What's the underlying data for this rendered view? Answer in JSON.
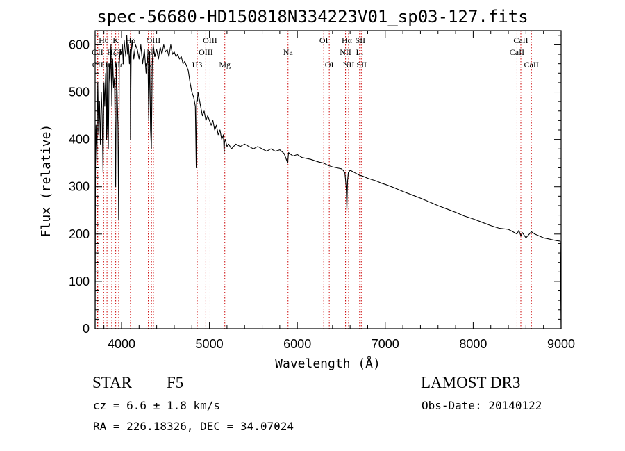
{
  "title": "spec-56680-HD150818N334223V01_sp03-127.fits",
  "footer": {
    "object_class": "STAR",
    "subclass": "F5",
    "survey": "LAMOST DR3",
    "cz": "cz = 6.6 ± 1.8 km/s",
    "obs_date": "Obs-Date: 20140122",
    "radec": "RA = 226.18326, DEC =  34.07024"
  },
  "chart_data": {
    "type": "line",
    "title": "spec-56680-HD150818N334223V01_sp03-127.fits",
    "xlabel": "Wavelength (Å)",
    "ylabel": "Flux (relative)",
    "xlim": [
      3700,
      9000
    ],
    "ylim": [
      0,
      630
    ],
    "x_ticks": [
      4000,
      5000,
      6000,
      7000,
      8000,
      9000
    ],
    "y_ticks": [
      0,
      100,
      200,
      300,
      400,
      500,
      600
    ],
    "line_color": "#000000",
    "marker_color": "#cc0000",
    "spectrum": {
      "x": [
        3700,
        3705,
        3710,
        3720,
        3730,
        3740,
        3750,
        3760,
        3770,
        3780,
        3790,
        3800,
        3810,
        3820,
        3830,
        3835,
        3840,
        3850,
        3860,
        3870,
        3880,
        3890,
        3900,
        3910,
        3920,
        3930,
        3934,
        3940,
        3950,
        3960,
        3968,
        3975,
        3985,
        4000,
        4010,
        4020,
        4030,
        4040,
        4050,
        4060,
        4070,
        4080,
        4090,
        4100,
        4102,
        4110,
        4120,
        4140,
        4160,
        4180,
        4200,
        4220,
        4240,
        4260,
        4280,
        4300,
        4310,
        4320,
        4330,
        4340,
        4350,
        4360,
        4380,
        4400,
        4420,
        4440,
        4460,
        4480,
        4500,
        4520,
        4540,
        4560,
        4580,
        4600,
        4620,
        4640,
        4660,
        4680,
        4700,
        4720,
        4740,
        4760,
        4780,
        4800,
        4820,
        4840,
        4850,
        4855,
        4861,
        4865,
        4870,
        4880,
        4900,
        4920,
        4940,
        4960,
        4980,
        5000,
        5020,
        5040,
        5060,
        5080,
        5100,
        5120,
        5140,
        5160,
        5167,
        5172,
        5180,
        5200,
        5220,
        5250,
        5300,
        5350,
        5400,
        5450,
        5500,
        5550,
        5600,
        5650,
        5700,
        5750,
        5800,
        5850,
        5890,
        5900,
        5950,
        6000,
        6050,
        6100,
        6150,
        6200,
        6250,
        6300,
        6350,
        6400,
        6450,
        6500,
        6520,
        6540,
        6555,
        6563,
        6570,
        6580,
        6600,
        6650,
        6700,
        6750,
        6800,
        6850,
        6900,
        6950,
        7000,
        7100,
        7200,
        7300,
        7400,
        7500,
        7600,
        7700,
        7800,
        7900,
        8000,
        8100,
        8200,
        8300,
        8400,
        8450,
        8498,
        8520,
        8542,
        8560,
        8600,
        8662,
        8700,
        8750,
        8800,
        8850,
        8900,
        8950,
        8990,
        9000
      ],
      "y": [
        0,
        380,
        430,
        350,
        520,
        410,
        480,
        390,
        500,
        450,
        330,
        520,
        470,
        540,
        400,
        560,
        430,
        380,
        560,
        520,
        600,
        470,
        570,
        510,
        530,
        380,
        300,
        560,
        500,
        430,
        230,
        560,
        590,
        580,
        600,
        560,
        610,
        590,
        575,
        620,
        580,
        600,
        560,
        590,
        400,
        580,
        610,
        570,
        600,
        590,
        570,
        600,
        560,
        590,
        540,
        580,
        440,
        585,
        420,
        380,
        560,
        600,
        575,
        590,
        570,
        595,
        580,
        600,
        585,
        590,
        575,
        600,
        580,
        585,
        575,
        580,
        570,
        575,
        560,
        565,
        555,
        545,
        520,
        500,
        490,
        470,
        340,
        480,
        490,
        480,
        500,
        490,
        470,
        450,
        460,
        440,
        450,
        440,
        430,
        440,
        420,
        430,
        410,
        420,
        400,
        410,
        370,
        395,
        400,
        385,
        390,
        380,
        390,
        385,
        390,
        385,
        380,
        385,
        380,
        375,
        380,
        375,
        378,
        370,
        350,
        372,
        365,
        368,
        362,
        360,
        358,
        355,
        352,
        350,
        345,
        342,
        340,
        338,
        335,
        330,
        300,
        250,
        310,
        330,
        335,
        330,
        325,
        322,
        318,
        315,
        312,
        308,
        305,
        298,
        290,
        283,
        276,
        268,
        260,
        253,
        246,
        238,
        232,
        225,
        218,
        212,
        210,
        205,
        200,
        208,
        196,
        203,
        192,
        205,
        200,
        196,
        192,
        190,
        188,
        186,
        185,
        0
      ]
    },
    "lines": [
      {
        "name": "Hθ",
        "wave": 3797,
        "row": 1
      },
      {
        "name": "OII",
        "wave": 3727,
        "row": 2
      },
      {
        "name": "CII",
        "wave": 3730,
        "row": 3
      },
      {
        "name": "Hη",
        "wave": 3835,
        "row": 3
      },
      {
        "name": "Hζ",
        "wave": 3889,
        "row": 2
      },
      {
        "name": "Hε",
        "wave": 3970,
        "row": 3
      },
      {
        "name": "K",
        "wave": 3934,
        "row": 1
      },
      {
        "name": "H",
        "wave": 3968,
        "row": 2
      },
      {
        "name": "Hδ",
        "wave": 4102,
        "row": 1
      },
      {
        "name": "G",
        "wave": 4305,
        "row": 3
      },
      {
        "name": "OIII",
        "wave": 4363,
        "row": 1
      },
      {
        "name": "Hγ",
        "wave": 4341,
        "row": 2
      },
      {
        "name": "Hβ",
        "wave": 4861,
        "row": 3
      },
      {
        "name": "OIII",
        "wave": 5007,
        "row": 1
      },
      {
        "name": "OIII",
        "wave": 4959,
        "row": 2
      },
      {
        "name": "Mg",
        "wave": 5175,
        "row": 3
      },
      {
        "name": "Na",
        "wave": 5894,
        "row": 2
      },
      {
        "name": "OI",
        "wave": 6300,
        "row": 1
      },
      {
        "name": "OI",
        "wave": 6363,
        "row": 3
      },
      {
        "name": "Hα",
        "wave": 6563,
        "row": 1
      },
      {
        "name": "NII",
        "wave": 6548,
        "row": 2
      },
      {
        "name": "NII",
        "wave": 6583,
        "row": 3
      },
      {
        "name": "SII",
        "wave": 6716,
        "row": 1
      },
      {
        "name": "Li",
        "wave": 6708,
        "row": 2
      },
      {
        "name": "SII",
        "wave": 6731,
        "row": 3
      },
      {
        "name": "CaII",
        "wave": 8542,
        "row": 1
      },
      {
        "name": "CaII",
        "wave": 8498,
        "row": 2
      },
      {
        "name": "CaII",
        "wave": 8662,
        "row": 3
      }
    ]
  }
}
